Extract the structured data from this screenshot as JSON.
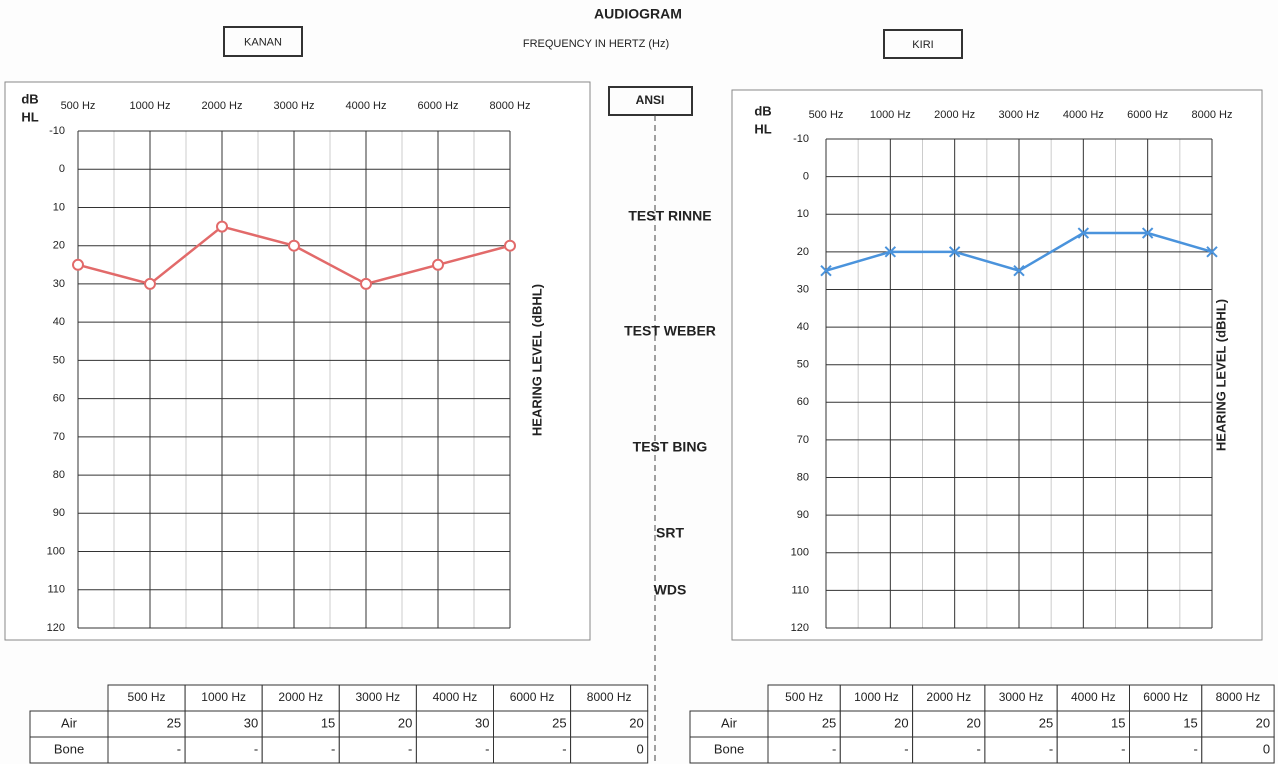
{
  "header": {
    "title": "AUDIOGRAM",
    "subtitle": "FREQUENCY IN HERTZ (Hz)",
    "standard": "ANSI"
  },
  "tests": [
    "TEST RINNE",
    "TEST WEBER",
    "TEST BING",
    "SRT",
    "WDS"
  ],
  "chart_data": [
    {
      "type": "line",
      "title": "KANAN",
      "y_unit": [
        "dB",
        "HL"
      ],
      "y_label": "HEARING LEVEL (dBHL)",
      "categories": [
        "500 Hz",
        "1000 Hz",
        "2000 Hz",
        "3000 Hz",
        "4000 Hz",
        "6000 Hz",
        "8000 Hz"
      ],
      "series": [
        {
          "color": "#e26a6a",
          "marker": "circle",
          "values": [
            25,
            30,
            15,
            20,
            30,
            25,
            20
          ]
        }
      ],
      "ylim": [
        -10,
        120
      ],
      "y_inverted": true,
      "yticks": [
        -10,
        0,
        10,
        20,
        30,
        40,
        50,
        60,
        70,
        80,
        90,
        100,
        110,
        120
      ],
      "grid": true
    },
    {
      "type": "line",
      "title": "KIRI",
      "y_unit": [
        "dB",
        "HL"
      ],
      "y_label": "HEARING LEVEL (dBHL)",
      "categories": [
        "500 Hz",
        "1000 Hz",
        "2000 Hz",
        "3000 Hz",
        "4000 Hz",
        "6000 Hz",
        "8000 Hz"
      ],
      "series": [
        {
          "color": "#4a93dc",
          "marker": "x",
          "values": [
            25,
            20,
            20,
            25,
            15,
            15,
            20
          ]
        }
      ],
      "ylim": [
        -10,
        120
      ],
      "y_inverted": true,
      "yticks": [
        -10,
        0,
        10,
        20,
        30,
        40,
        50,
        60,
        70,
        80,
        90,
        100,
        110,
        120
      ],
      "grid": true
    }
  ],
  "tables": [
    {
      "header": [
        "500 Hz",
        "1000 Hz",
        "2000 Hz",
        "3000 Hz",
        "4000 Hz",
        "6000 Hz",
        "8000 Hz"
      ],
      "rows": [
        [
          "Air",
          25,
          30,
          15,
          20,
          30,
          25,
          20
        ],
        [
          "Bone",
          "-",
          "-",
          "-",
          "-",
          "-",
          "-",
          0
        ]
      ]
    },
    {
      "header": [
        "500 Hz",
        "1000 Hz",
        "2000 Hz",
        "3000 Hz",
        "4000 Hz",
        "6000 Hz",
        "8000 Hz"
      ],
      "rows": [
        [
          "Air",
          25,
          20,
          20,
          25,
          15,
          15,
          20
        ],
        [
          "Bone",
          "-",
          "-",
          "-",
          "-",
          "-",
          "-",
          0
        ]
      ]
    }
  ]
}
